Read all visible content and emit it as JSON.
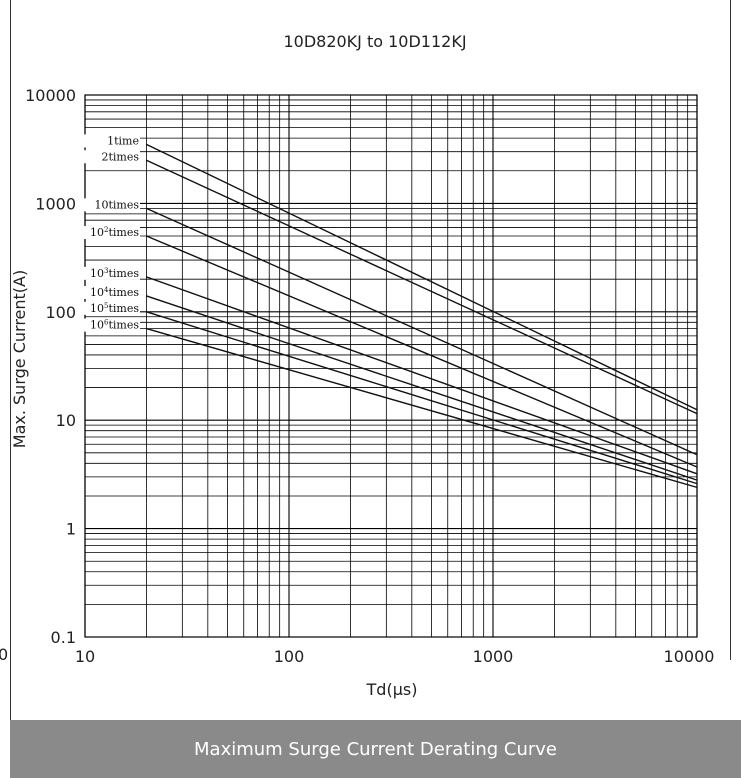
{
  "footer": {
    "caption": "Maximum Surge Current Derating Curve"
  },
  "fragment_label": "0",
  "chart_data": {
    "type": "line",
    "title": "10D820KJ to 10D112KJ",
    "xlabel": "Td(μs)",
    "ylabel": "Max. Surge Current(A)",
    "xscale": "log",
    "yscale": "log",
    "xlim": [
      10,
      10000
    ],
    "ylim": [
      0.1,
      10000
    ],
    "x_ticks": [
      10,
      100,
      1000,
      10000
    ],
    "x_tick_labels": [
      "10",
      "100",
      "1000",
      "10000"
    ],
    "y_ticks": [
      0.1,
      1,
      10,
      100,
      1000,
      10000
    ],
    "y_tick_labels": [
      "0.1",
      "1",
      "10",
      "100",
      "1000",
      "10000"
    ],
    "grid": true,
    "series": [
      {
        "name": "1time",
        "label_base": "1time",
        "label_exp": "",
        "x": [
          20,
          10000
        ],
        "y": [
          3500,
          12.5
        ]
      },
      {
        "name": "2times",
        "label_base": "2times",
        "label_exp": "",
        "x": [
          20,
          10000
        ],
        "y": [
          2500,
          11.5
        ]
      },
      {
        "name": "10times",
        "label_base": "10times",
        "label_exp": "",
        "x": [
          20,
          10000
        ],
        "y": [
          900,
          4.8
        ]
      },
      {
        "name": "10²times",
        "label_base": "10",
        "label_exp": "2",
        "label_suffix": "times",
        "x": [
          20,
          10000
        ],
        "y": [
          500,
          3.7
        ]
      },
      {
        "name": "10³times",
        "label_base": "10",
        "label_exp": "3",
        "label_suffix": "times",
        "x": [
          20,
          10000
        ],
        "y": [
          210,
          3.2
        ]
      },
      {
        "name": "10⁴times",
        "label_base": "10",
        "label_exp": "4",
        "label_suffix": "times",
        "x": [
          20,
          10000
        ],
        "y": [
          140,
          2.8
        ]
      },
      {
        "name": "10⁵times",
        "label_base": "10",
        "label_exp": "5",
        "label_suffix": "times",
        "x": [
          20,
          10000
        ],
        "y": [
          100,
          2.6
        ]
      },
      {
        "name": "10⁶times",
        "label_base": "10",
        "label_exp": "6",
        "label_suffix": "times",
        "x": [
          20,
          10000
        ],
        "y": [
          70,
          2.4
        ]
      }
    ]
  }
}
